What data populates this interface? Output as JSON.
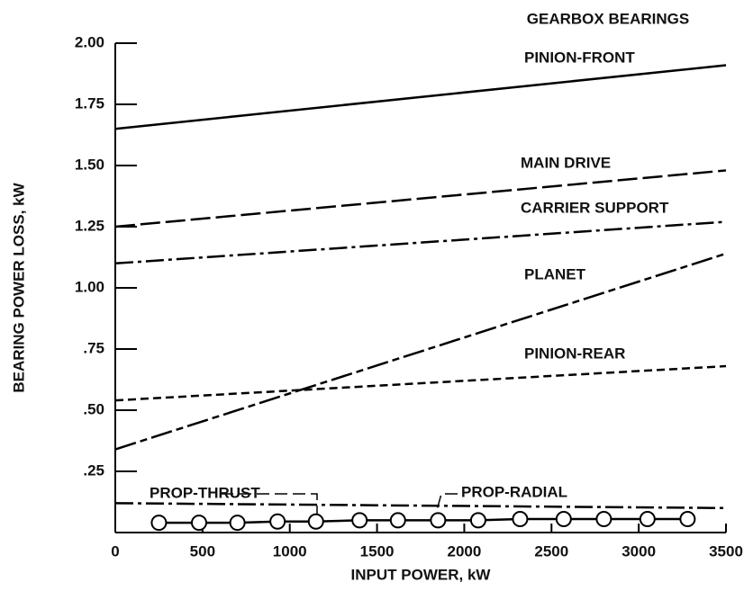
{
  "chart_data": {
    "type": "line",
    "title": "GEARBOX BEARINGS",
    "x_label": "INPUT POWER, kW",
    "y_label": "BEARING POWER LOSS, kW",
    "xlim": [
      0,
      3500
    ],
    "ylim": [
      0,
      2
    ],
    "xticks": [
      0,
      500,
      1000,
      1500,
      2000,
      2500,
      3000,
      3500
    ],
    "yticks": [
      {
        "value": 0.25,
        "label": ".25"
      },
      {
        "value": 0.5,
        "label": ".50"
      },
      {
        "value": 0.75,
        "label": ".75"
      },
      {
        "value": 1,
        "label": "1.00"
      },
      {
        "value": 1.25,
        "label": "1.25"
      },
      {
        "value": 1.5,
        "label": "1.50"
      },
      {
        "value": 1.75,
        "label": "1.75"
      },
      {
        "value": 2,
        "label": "2.00"
      }
    ],
    "series": [
      {
        "name": "PINION-FRONT",
        "color": "#000000",
        "dash": "solid",
        "x": [
          0,
          3500
        ],
        "values": [
          1.65,
          1.91
        ]
      },
      {
        "name": "MAIN DRIVE",
        "color": "#000000",
        "dash": "long-dash",
        "x": [
          0,
          3500
        ],
        "values": [
          1.25,
          1.48
        ]
      },
      {
        "name": "CARRIER SUPPORT",
        "color": "#000000",
        "dash": "dash-dot",
        "x": [
          0,
          3500
        ],
        "values": [
          1.1,
          1.27
        ]
      },
      {
        "name": "PLANET",
        "color": "#000000",
        "dash": "long-short",
        "x": [
          0,
          3500
        ],
        "values": [
          0.34,
          1.14
        ]
      },
      {
        "name": "PINION-REAR",
        "color": "#000000",
        "dash": "short-dash",
        "x": [
          0,
          3500
        ],
        "values": [
          0.54,
          0.68
        ]
      },
      {
        "name": "PROP-RADIAL",
        "color": "#000000",
        "dash": "dash-dot",
        "x": [
          0,
          3500
        ],
        "values": [
          0.12,
          0.1
        ]
      },
      {
        "name": "PROP-THRUST",
        "color": "#000000",
        "dash": "solid",
        "marker": "circle",
        "x": [
          250,
          480,
          700,
          930,
          1150,
          1400,
          1620,
          1850,
          2080,
          2320,
          2570,
          2800,
          3050,
          3280
        ],
        "values": [
          0.04,
          0.04,
          0.04,
          0.045,
          0.045,
          0.05,
          0.05,
          0.05,
          0.05,
          0.055,
          0.055,
          0.055,
          0.055,
          0.055
        ]
      }
    ]
  }
}
